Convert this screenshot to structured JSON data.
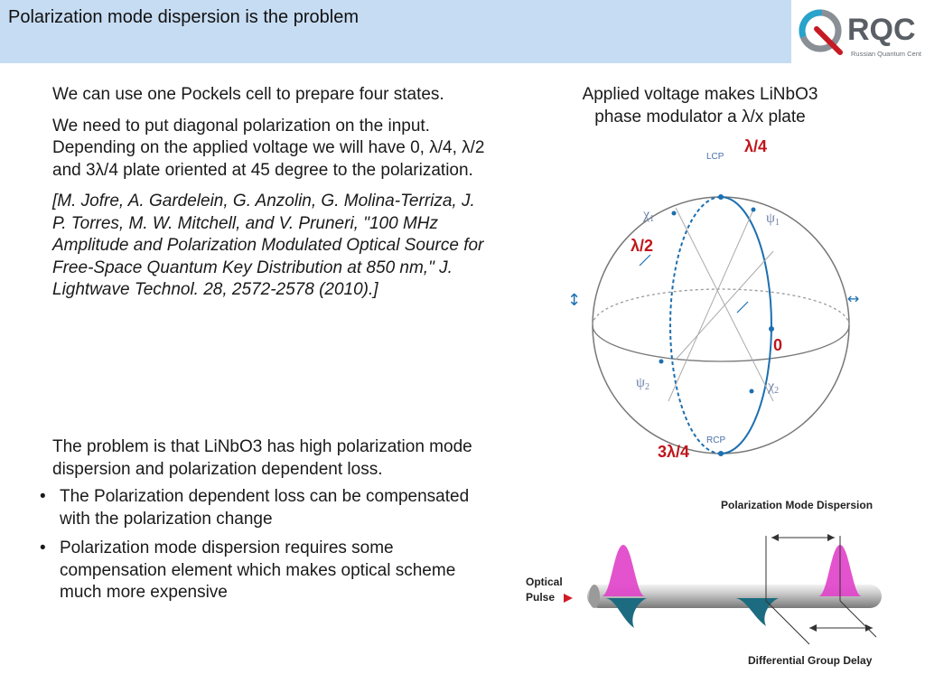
{
  "header": {
    "title": "Polarization mode dispersion is the problem",
    "logo_text": "RQC",
    "logo_subtext": "Russian Quantum Center",
    "bar_color": "#c6dcf3"
  },
  "left": {
    "paragraphs": [
      "We can use one Pockels cell to prepare four states.",
      "We need to put diagonal polarization on the input. Depending on the applied voltage we will have 0, λ/4, λ/2 and 3λ/4 plate oriented at 45 degree to the polarization.",
      "[M. Jofre, A. Gardelein, G. Anzolin, G. Molina-Terriza, J. P. Torres, M. W. Mitchell, and V. Pruneri, \"100 MHz Amplitude and Polarization Modulated Optical Source for Free-Space Quantum Key Distribution at 850 nm,\" J. Lightwave Technol. 28, 2572-2578 (2010).]"
    ],
    "problem": "The problem is that LiNbO3 has high polarization mode dispersion and polarization dependent loss.",
    "bullets": [
      "The Polarization dependent loss can be compensated with the polarization change",
      "Polarization mode dispersion requires some compensation element which makes optical scheme much more expensive"
    ]
  },
  "right": {
    "caption_line1": "Applied voltage makes LiNbO3",
    "caption_line2": "phase modulator a λ/x plate",
    "labels": {
      "quarter": "λ/4",
      "half": "λ/2",
      "zero": "0",
      "three_quarter": "3λ/4",
      "lcp": "LCP",
      "rcp": "RCP",
      "chi1": "χ",
      "chi1_sub": "1",
      "chi2": "χ",
      "chi2_sub": "2",
      "psi1": "ψ",
      "psi1_sub": "1",
      "psi2": "ψ",
      "psi2_sub": "2",
      "vertical": "↕",
      "horizontal": "↔"
    },
    "pmd": {
      "title": "Polarization Mode Dispersion",
      "optical": "Optical",
      "pulse": "Pulse",
      "dgd": "Differential Group Delay"
    }
  },
  "colors": {
    "red_label": "#c0151b",
    "sphere_line": "#1c6fb0",
    "pulse_magenta": "#e040c8",
    "pulse_teal": "#1c6b80"
  }
}
